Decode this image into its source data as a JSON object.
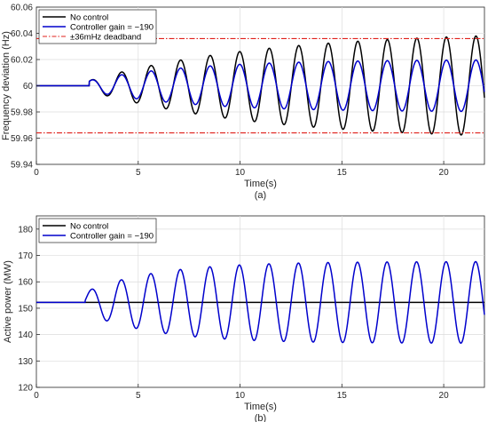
{
  "chart_data": [
    {
      "type": "line",
      "caption": "(a)",
      "xlabel": "Time(s)",
      "ylabel": "Frequency deviation (Hz)",
      "xlim": [
        0,
        22
      ],
      "ylim": [
        59.94,
        60.06
      ],
      "xticks": [
        0,
        5,
        10,
        15,
        20
      ],
      "yticks": [
        59.94,
        59.96,
        59.98,
        60,
        60.02,
        60.04,
        60.06
      ],
      "ytick_labels": [
        "59.94",
        "59.96",
        "59.98",
        "60",
        "60.02",
        "60.04",
        "60.06"
      ],
      "grid": true,
      "legend_position": "top-left",
      "series": [
        {
          "name": "No control",
          "color": "#000000",
          "style": "solid",
          "model": {
            "base": 60,
            "start": 2.6,
            "period": 1.45,
            "phase": 1.0,
            "amp_initial": 0.004,
            "amp_final": 0.042,
            "growth_time": 8.5
          }
        },
        {
          "name": "Controller gain = −190",
          "color": "#0000cc",
          "style": "solid",
          "model": {
            "base": 60,
            "start": 2.6,
            "period": 1.45,
            "phase": 1.0,
            "amp_initial": 0.004,
            "amp_final": 0.02,
            "growth_time": 5.0
          }
        },
        {
          "name": "±36mHz deadband",
          "color": "#e0201b",
          "style": "dashdot",
          "values": [
            60.036,
            59.964
          ]
        }
      ]
    },
    {
      "type": "line",
      "caption": "(b)",
      "xlabel": "Time(s)",
      "ylabel": "Active power (MW)",
      "xlim": [
        0,
        22
      ],
      "ylim": [
        120,
        185
      ],
      "xticks": [
        0,
        5,
        10,
        15,
        20
      ],
      "yticks": [
        120,
        130,
        140,
        150,
        160,
        170,
        180
      ],
      "ytick_labels": [
        "120",
        "130",
        "140",
        "150",
        "160",
        "170",
        "180"
      ],
      "grid": true,
      "legend_position": "top-left",
      "series": [
        {
          "name": "No control",
          "color": "#000000",
          "style": "solid",
          "model": {
            "base": 152.2,
            "start": 0,
            "period": 1.45,
            "phase": 0,
            "amp_initial": 0,
            "amp_final": 0,
            "growth_time": 1
          }
        },
        {
          "name": "Controller gain = −190",
          "color": "#0000cc",
          "style": "solid",
          "model": {
            "base": 152.2,
            "start": 2.4,
            "period": 1.45,
            "phase": 0.2,
            "amp_initial": 4,
            "amp_final": 15.5,
            "growth_time": 3.5
          }
        }
      ]
    }
  ]
}
